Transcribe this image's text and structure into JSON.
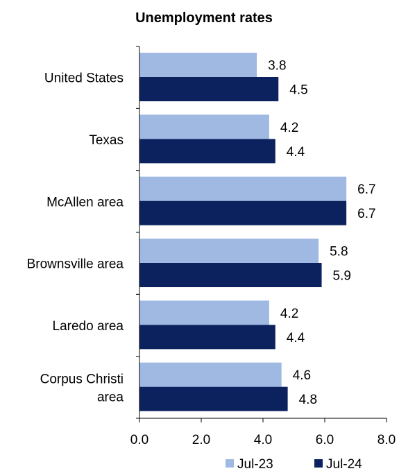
{
  "chart_data": {
    "type": "bar",
    "orientation": "horizontal",
    "title": "Unemployment rates",
    "xlabel": "",
    "ylabel": "",
    "categories": [
      [
        "United States"
      ],
      [
        "Texas"
      ],
      [
        "McAllen area"
      ],
      [
        "Brownsville area"
      ],
      [
        "Laredo area"
      ],
      [
        "Corpus Christi",
        "area"
      ]
    ],
    "series": [
      {
        "name": "Jul-23",
        "color": "#9fb9e3",
        "values": [
          3.8,
          4.2,
          6.7,
          5.8,
          4.2,
          4.6
        ]
      },
      {
        "name": "Jul-24",
        "color": "#0b225e",
        "values": [
          4.5,
          4.4,
          6.7,
          5.9,
          4.4,
          4.8
        ]
      }
    ],
    "xlim": [
      0,
      8
    ],
    "xticks": [
      "0.0",
      "2.0",
      "4.0",
      "6.0",
      "8.0"
    ],
    "grid": false,
    "legend_position": "bottom-right",
    "value_labels": true
  }
}
